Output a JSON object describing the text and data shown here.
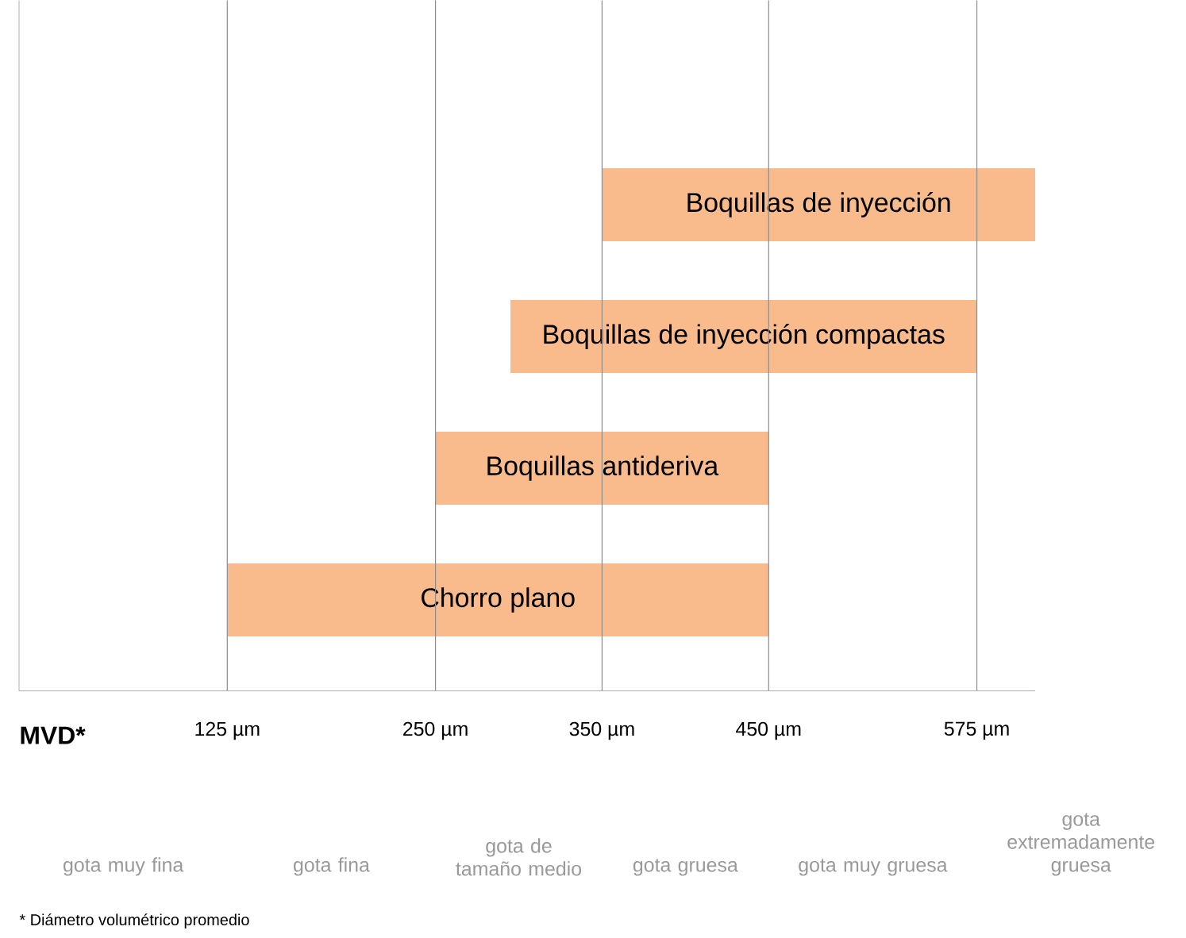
{
  "chart_data": {
    "type": "bar",
    "orientation": "horizontal",
    "xlabel": "MVD*",
    "categories": [
      "Boquillas de inyección",
      "Boquillas de inyección compactas",
      "Boquillas antideriva",
      "Chorro plano"
    ],
    "base": [
      350,
      295,
      250,
      125
    ],
    "values": [
      260,
      280,
      200,
      325
    ],
    "color": "#f9bb8c",
    "xlim": [
      0,
      610
    ],
    "xticks": [
      {
        "value": 125,
        "label": "125 µm"
      },
      {
        "value": 250,
        "label": "250 µm"
      },
      {
        "value": 350,
        "label": "350 µm"
      },
      {
        "value": 450,
        "label": "450 µm"
      },
      {
        "value": 575,
        "label": "575 µm"
      }
    ],
    "grid": "x",
    "annotations": [
      "gota muy fina",
      "gota fina",
      "gota de tamaño medio",
      "gota gruesa",
      "gota muy gruesa",
      "gota extremadamente gruesa",
      "* Diámetro volumétrico promedio"
    ]
  }
}
